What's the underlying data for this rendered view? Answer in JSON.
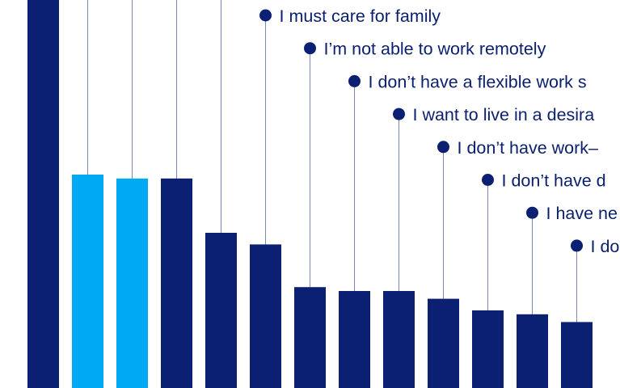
{
  "chart_data": {
    "type": "bar",
    "title": "",
    "xlabel": "",
    "ylabel": "",
    "ylim": [
      0,
      100
    ],
    "grid": false,
    "legend": "none",
    "colors": {
      "dark": "#0b1f73",
      "light": "#00a9f4",
      "stem": "#7a86b8"
    },
    "bars": [
      {
        "value": 100,
        "color": "dark",
        "label": ""
      },
      {
        "value": 55,
        "color": "light",
        "label": ""
      },
      {
        "value": 54,
        "color": "light",
        "label": ""
      },
      {
        "value": 54,
        "color": "dark",
        "label": ""
      },
      {
        "value": 40,
        "color": "dark",
        "label": ""
      },
      {
        "value": 37,
        "color": "dark",
        "label": "I must care for family"
      },
      {
        "value": 26,
        "color": "dark",
        "label": "I’m not able to work remotely"
      },
      {
        "value": 25,
        "color": "dark",
        "label": "I don’t have a flexible work s"
      },
      {
        "value": 25,
        "color": "dark",
        "label": "I want to live in a desira"
      },
      {
        "value": 23,
        "color": "dark",
        "label": "I don’t have work–"
      },
      {
        "value": 20,
        "color": "dark",
        "label": "I don’t have d"
      },
      {
        "value": 19,
        "color": "dark",
        "label": "I have ne"
      },
      {
        "value": 17,
        "color": "dark",
        "label": "I do"
      }
    ]
  }
}
